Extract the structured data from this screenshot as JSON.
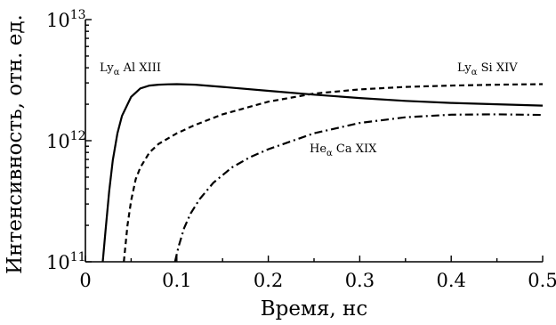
{
  "chart_data": {
    "type": "line",
    "title": "",
    "xlabel": "Время, нс",
    "ylabel": "Интенсивность, отн. ед.",
    "x_scale": "linear",
    "y_scale": "log",
    "xlim": [
      0,
      0.5
    ],
    "ylim": [
      100000000000.0,
      10000000000000.0
    ],
    "grid": false,
    "x_ticks": [
      {
        "value": 0,
        "label": "0"
      },
      {
        "value": 0.1,
        "label": "0.1"
      },
      {
        "value": 0.2,
        "label": "0.2"
      },
      {
        "value": 0.3,
        "label": "0.3"
      },
      {
        "value": 0.4,
        "label": "0.4"
      },
      {
        "value": 0.5,
        "label": "0.5"
      }
    ],
    "y_ticks": [
      {
        "value": 100000000000.0,
        "base": "10",
        "exp": "11"
      },
      {
        "value": 1000000000000.0,
        "base": "10",
        "exp": "12"
      },
      {
        "value": 10000000000000.0,
        "base": "10",
        "exp": "13"
      }
    ],
    "series": [
      {
        "label": {
          "pre": "Ly",
          "sub": "α",
          "post": " Al XIII"
        },
        "style": "solid",
        "x": [
          0.019,
          0.022,
          0.026,
          0.03,
          0.035,
          0.04,
          0.05,
          0.06,
          0.07,
          0.08,
          0.09,
          0.1,
          0.12,
          0.15,
          0.2,
          0.25,
          0.3,
          0.35,
          0.4,
          0.45,
          0.5
        ],
        "y": [
          100000000000.0,
          180000000000.0,
          380000000000.0,
          690000000000.0,
          1150000000000.0,
          1600000000000.0,
          2300000000000.0,
          2700000000000.0,
          2850000000000.0,
          2900000000000.0,
          2920000000000.0,
          2930000000000.0,
          2900000000000.0,
          2780000000000.0,
          2580000000000.0,
          2400000000000.0,
          2250000000000.0,
          2130000000000.0,
          2050000000000.0,
          2000000000000.0,
          1950000000000.0
        ]
      },
      {
        "label": {
          "pre": "Ly",
          "sub": "α",
          "post": " Si XIV"
        },
        "style": "dashed",
        "x": [
          0.042,
          0.046,
          0.05,
          0.055,
          0.06,
          0.07,
          0.08,
          0.1,
          0.12,
          0.15,
          0.2,
          0.25,
          0.3,
          0.35,
          0.4,
          0.45,
          0.5
        ],
        "y": [
          100000000000.0,
          200000000000.0,
          320000000000.0,
          480000000000.0,
          600000000000.0,
          800000000000.0,
          940000000000.0,
          1150000000000.0,
          1350000000000.0,
          1650000000000.0,
          2100000000000.0,
          2450000000000.0,
          2650000000000.0,
          2780000000000.0,
          2850000000000.0,
          2900000000000.0,
          2930000000000.0
        ]
      },
      {
        "label": {
          "pre": "He",
          "sub": "α",
          "post": " Ca XIX"
        },
        "style": "dashdot",
        "x": [
          0.098,
          0.102,
          0.108,
          0.115,
          0.125,
          0.14,
          0.16,
          0.18,
          0.2,
          0.25,
          0.3,
          0.35,
          0.4,
          0.45,
          0.5
        ],
        "y": [
          100000000000.0,
          135000000000.0,
          190000000000.0,
          250000000000.0,
          330000000000.0,
          450000000000.0,
          600000000000.0,
          730000000000.0,
          850000000000.0,
          1150000000000.0,
          1400000000000.0,
          1560000000000.0,
          1640000000000.0,
          1650000000000.0,
          1630000000000.0
        ]
      }
    ]
  }
}
